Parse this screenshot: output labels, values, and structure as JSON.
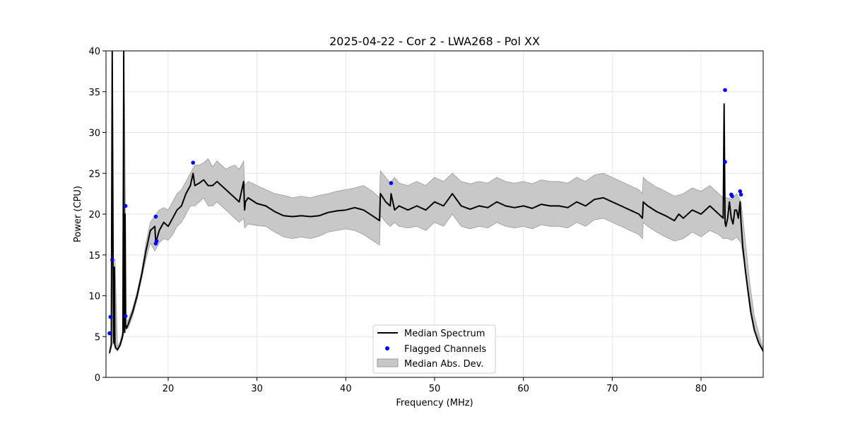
{
  "chart_data": {
    "type": "line",
    "title": "2025-04-22 - Cor 2 - LWA268 - Pol XX",
    "xlabel": "Frequency (MHz)",
    "ylabel": "Power (CPU)",
    "xlim": [
      13,
      87
    ],
    "ylim": [
      0,
      40
    ],
    "x_ticks": [
      20,
      30,
      40,
      50,
      60,
      70,
      80
    ],
    "y_ticks": [
      0,
      5,
      10,
      15,
      20,
      25,
      30,
      35,
      40
    ],
    "grid": true,
    "legend_position": "bottom-center",
    "colors": {
      "median_line": "#000000",
      "flagged": "#0000ff",
      "mad_fill": "#c8c8c8",
      "mad_edge": "#9a9a9a"
    },
    "series": [
      {
        "name": "Median Spectrum",
        "kind": "line",
        "x": [
          13.4,
          13.6,
          13.7,
          13.8,
          13.85,
          13.9,
          13.95,
          14.0,
          14.1,
          14.3,
          14.6,
          14.9,
          15.0,
          15.05,
          15.1,
          15.15,
          15.2,
          15.3,
          15.5,
          16.0,
          16.5,
          17.0,
          17.5,
          18.0,
          18.5,
          18.6,
          19.0,
          19.5,
          20.0,
          20.5,
          21.0,
          21.5,
          22.0,
          22.5,
          22.8,
          23.0,
          23.5,
          24.0,
          24.5,
          25.0,
          25.5,
          26.0,
          26.5,
          27.0,
          27.5,
          28.0,
          28.5,
          28.6,
          28.7,
          29.0,
          30.0,
          31.0,
          32.0,
          33.0,
          34.0,
          35.0,
          36.0,
          37.0,
          38.0,
          39.0,
          40.0,
          41.0,
          42.0,
          43.0,
          43.8,
          43.9,
          44.5,
          45.0,
          45.1,
          45.5,
          46.0,
          47.0,
          48.0,
          49.0,
          50.0,
          51.0,
          52.0,
          53.0,
          54.0,
          55.0,
          56.0,
          57.0,
          58.0,
          59.0,
          60.0,
          61.0,
          62.0,
          63.0,
          64.0,
          65.0,
          66.0,
          67.0,
          68.0,
          69.0,
          70.0,
          71.0,
          72.0,
          73.0,
          73.4,
          73.5,
          74.0,
          75.0,
          76.0,
          77.0,
          77.5,
          78.0,
          79.0,
          80.0,
          81.0,
          82.0,
          82.5,
          82.6,
          82.7,
          82.8,
          83.0,
          83.2,
          83.4,
          83.6,
          83.8,
          84.0,
          84.2,
          84.4,
          84.5,
          84.7,
          85.0,
          85.3,
          85.6,
          86.0,
          86.5,
          87.0
        ],
        "y": [
          3.0,
          4.0,
          40.0,
          14.0,
          5.0,
          4.2,
          13.5,
          4.0,
          3.6,
          3.4,
          4.0,
          5.2,
          40.0,
          6.0,
          5.5,
          20.0,
          6.5,
          6.0,
          6.5,
          8.0,
          10.0,
          12.5,
          15.5,
          18.0,
          18.5,
          16.5,
          18.0,
          19.0,
          18.5,
          19.5,
          20.5,
          21.0,
          22.5,
          23.5,
          25.0,
          23.5,
          23.8,
          24.2,
          23.5,
          23.5,
          24.0,
          23.5,
          23.0,
          22.5,
          22.0,
          21.5,
          24.0,
          20.5,
          21.5,
          22.0,
          21.3,
          21.0,
          20.3,
          19.8,
          19.7,
          19.8,
          19.7,
          19.8,
          20.2,
          20.4,
          20.5,
          20.8,
          20.5,
          19.8,
          19.2,
          22.5,
          21.5,
          21.0,
          22.5,
          20.5,
          21.0,
          20.5,
          21.0,
          20.5,
          21.5,
          21.0,
          22.5,
          21.0,
          20.6,
          21.0,
          20.8,
          21.5,
          21.0,
          20.8,
          21.0,
          20.7,
          21.2,
          21.0,
          21.0,
          20.8,
          21.5,
          21.0,
          21.8,
          22.0,
          21.5,
          21.0,
          20.5,
          20.0,
          19.5,
          21.5,
          21.0,
          20.3,
          19.8,
          19.2,
          20.0,
          19.5,
          20.5,
          20.0,
          21.0,
          20.0,
          19.5,
          33.5,
          19.0,
          18.5,
          19.5,
          21.5,
          19.5,
          18.8,
          20.5,
          20.5,
          19.5,
          21.5,
          19.0,
          16.0,
          13.0,
          10.5,
          8.0,
          5.8,
          4.2,
          3.2
        ]
      },
      {
        "name": "Flagged Channels",
        "kind": "scatter",
        "x": [
          13.4,
          13.5,
          13.7,
          15.2,
          15.2,
          18.6,
          18.7,
          18.6,
          22.8,
          45.1,
          82.7,
          82.7,
          83.4,
          83.5,
          84.4,
          84.5
        ],
        "y": [
          5.4,
          7.4,
          14.4,
          21.0,
          7.5,
          19.7,
          16.7,
          16.4,
          26.3,
          23.8,
          35.2,
          26.4,
          22.4,
          22.2,
          22.8,
          22.4
        ]
      },
      {
        "name": "Median Abs. Dev.",
        "kind": "band",
        "x": [
          13.4,
          13.6,
          13.7,
          13.8,
          13.9,
          14.0,
          14.3,
          14.6,
          14.9,
          15.0,
          15.1,
          15.3,
          15.5,
          16.0,
          16.5,
          17.0,
          17.5,
          18.0,
          18.5,
          19.0,
          19.5,
          20.0,
          20.5,
          21.0,
          21.5,
          22.0,
          22.5,
          23.0,
          23.5,
          24.0,
          24.5,
          25.0,
          25.5,
          26.0,
          26.5,
          27.0,
          27.5,
          28.0,
          28.5,
          28.6,
          29.0,
          30.0,
          31.0,
          32.0,
          33.0,
          34.0,
          35.0,
          36.0,
          37.0,
          38.0,
          39.0,
          40.0,
          41.0,
          42.0,
          43.0,
          43.8,
          43.9,
          44.5,
          45.0,
          45.5,
          46.0,
          47.0,
          48.0,
          49.0,
          50.0,
          51.0,
          52.0,
          53.0,
          54.0,
          55.0,
          56.0,
          57.0,
          58.0,
          59.0,
          60.0,
          61.0,
          62.0,
          63.0,
          64.0,
          65.0,
          66.0,
          67.0,
          68.0,
          69.0,
          70.0,
          71.0,
          72.0,
          73.0,
          73.4,
          73.5,
          74.0,
          75.0,
          76.0,
          77.0,
          78.0,
          79.0,
          80.0,
          81.0,
          82.0,
          82.5,
          83.0,
          83.5,
          84.0,
          84.5,
          85.0,
          85.5,
          86.0,
          87.0
        ],
        "upper": [
          3.2,
          4.5,
          40.0,
          15.0,
          5.0,
          14.5,
          3.8,
          4.4,
          5.8,
          40.0,
          33.0,
          7.0,
          7.0,
          8.5,
          10.5,
          13.0,
          16.5,
          19.0,
          19.8,
          20.5,
          20.8,
          20.5,
          21.5,
          22.5,
          23.0,
          24.0,
          25.0,
          26.0,
          26.0,
          26.3,
          26.8,
          25.8,
          26.5,
          26.0,
          25.5,
          25.8,
          26.0,
          25.5,
          26.5,
          23.5,
          24.0,
          23.5,
          23.0,
          22.5,
          22.3,
          22.0,
          22.2,
          22.0,
          22.3,
          22.5,
          22.8,
          23.0,
          23.2,
          23.5,
          22.8,
          22.0,
          25.3,
          24.5,
          23.8,
          24.5,
          23.8,
          23.5,
          24.0,
          23.5,
          24.5,
          24.0,
          25.0,
          24.0,
          23.7,
          24.0,
          23.8,
          24.5,
          24.0,
          23.8,
          24.0,
          23.7,
          24.2,
          24.0,
          24.0,
          23.8,
          24.5,
          24.0,
          24.8,
          25.0,
          24.5,
          24.0,
          23.5,
          23.0,
          22.5,
          24.5,
          24.0,
          23.3,
          22.8,
          22.2,
          22.5,
          23.2,
          22.8,
          23.5,
          22.5,
          22.0,
          22.0,
          21.8,
          22.5,
          21.5,
          16.5,
          11.5,
          7.5,
          3.4
        ],
        "lower": [
          2.8,
          3.6,
          4.0,
          4.5,
          4.0,
          3.6,
          3.2,
          3.8,
          4.8,
          5.5,
          5.5,
          6.0,
          6.0,
          7.5,
          9.5,
          12.0,
          14.5,
          16.5,
          15.5,
          16.5,
          17.0,
          16.8,
          17.5,
          18.5,
          19.0,
          20.0,
          21.0,
          21.0,
          21.5,
          22.0,
          21.0,
          21.0,
          21.5,
          21.0,
          20.5,
          20.0,
          19.5,
          19.0,
          19.5,
          18.3,
          18.8,
          18.6,
          18.5,
          17.8,
          17.2,
          17.0,
          17.2,
          17.0,
          17.3,
          17.8,
          18.0,
          18.2,
          18.0,
          17.5,
          16.8,
          16.2,
          19.8,
          19.0,
          18.5,
          19.0,
          18.5,
          18.3,
          18.5,
          18.0,
          19.0,
          18.5,
          20.0,
          18.5,
          18.2,
          18.5,
          18.3,
          19.0,
          18.5,
          18.3,
          18.5,
          18.2,
          18.7,
          18.5,
          18.5,
          18.3,
          19.0,
          18.5,
          19.3,
          19.5,
          19.0,
          18.5,
          18.0,
          17.5,
          17.0,
          19.0,
          18.5,
          17.8,
          17.2,
          16.7,
          17.0,
          17.8,
          17.2,
          18.0,
          17.5,
          17.0,
          17.0,
          16.8,
          17.2,
          16.5,
          13.0,
          9.5,
          6.3,
          3.0
        ]
      }
    ]
  }
}
